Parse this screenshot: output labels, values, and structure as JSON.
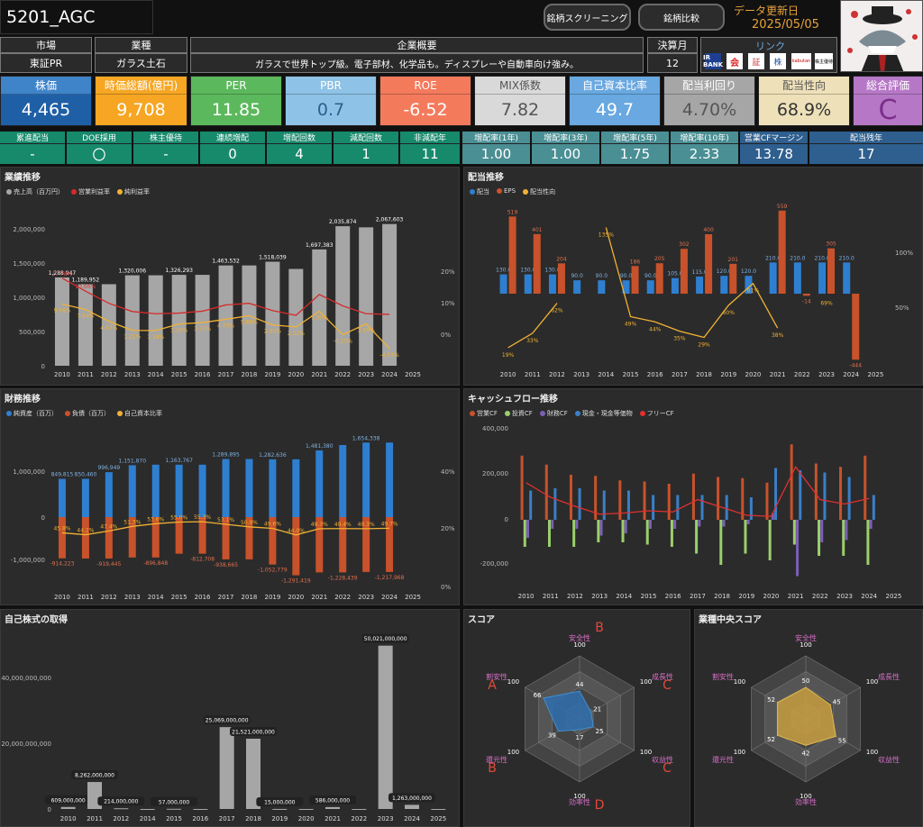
{
  "header": {
    "title": "5201_AGC",
    "btn_screening": "銘柄スクリーニング",
    "btn_compare": "銘柄比較",
    "update_label": "データ更新日",
    "update_date": "2025/05/05"
  },
  "info": {
    "market_h": "市場",
    "market_v": "東証PR",
    "industry_h": "業種",
    "industry_v": "ガラス土石",
    "overview_h": "企業概要",
    "overview_v": "ガラスで世界トップ級。電子部材、化学品も。ディスプレーや自動車向け強み。",
    "fiscal_h": "決算月",
    "fiscal_v": "12",
    "link_h": "リンク",
    "links": [
      "IR BANK",
      "会",
      "証",
      "株",
      "kabutan",
      "株主優待"
    ]
  },
  "kpis": [
    {
      "label": "株価",
      "value": "4,465",
      "bg": "#1f5fa6",
      "lbg": "#3f83c8"
    },
    {
      "label": "時価総額(億円)",
      "value": "9,708",
      "bg": "#f6a623",
      "lbg": "#f6a623"
    },
    {
      "label": "PER",
      "value": "11.85",
      "bg": "#5cb85c",
      "lbg": "#5cb85c"
    },
    {
      "label": "PBR",
      "value": "0.7",
      "bg": "#8ec2e6",
      "lbg": "#8ec2e6"
    },
    {
      "label": "ROE",
      "value": "-6.52",
      "bg": "#f47a5c",
      "lbg": "#f47a5c"
    },
    {
      "label": "MIX係数",
      "value": "7.82",
      "bg": "#d9d9d9",
      "lbg": "#d9d9d9"
    },
    {
      "label": "自己資本比率",
      "value": "49.7",
      "bg": "#69a8e0",
      "lbg": "#69a8e0"
    },
    {
      "label": "配当利回り",
      "value": "4.70%",
      "bg": "#a6a6a6",
      "lbg": "#a6a6a6"
    },
    {
      "label": "配当性向",
      "value": "68.9%",
      "bg": "#eee1b9",
      "lbg": "#eee1b9"
    },
    {
      "label": "総合評価",
      "value": "C",
      "bg": "#b678c6",
      "lbg": "#b678c6"
    }
  ],
  "stats": [
    {
      "label": "累進配当",
      "value": "-",
      "bg": "#178a6c"
    },
    {
      "label": "DOE採用",
      "value": "〇",
      "bg": "#178a6c"
    },
    {
      "label": "株主優待",
      "value": "-",
      "bg": "#178a6c"
    },
    {
      "label": "連続増配",
      "value": "0",
      "bg": "#178a6c"
    },
    {
      "label": "増配回数",
      "value": "4",
      "bg": "#178a6c"
    },
    {
      "label": "減配回数",
      "value": "1",
      "bg": "#178a6c"
    },
    {
      "label": "非減配年",
      "value": "11",
      "bg": "#178a6c"
    },
    {
      "label": "増配率(1年)",
      "value": "1.00",
      "bg": "#4a8f94"
    },
    {
      "label": "増配率(3年)",
      "value": "1.00",
      "bg": "#4a8f94"
    },
    {
      "label": "増配率(5年)",
      "value": "1.75",
      "bg": "#4a8f94"
    },
    {
      "label": "増配率(10年)",
      "value": "2.33",
      "bg": "#4a8f94"
    },
    {
      "label": "営業CFマージン",
      "value": "13.78",
      "bg": "#2e5f8e"
    },
    {
      "label": "配当残年",
      "value": "17",
      "bg": "#2e5f8e"
    }
  ],
  "panels": {
    "perf": "業績推移",
    "div": "配当推移",
    "fin": "財務推移",
    "cf": "キャッシュフロー推移",
    "buyback": "自己株式の取得",
    "score": "スコア",
    "ind_score": "業種中央スコア"
  },
  "chart_data": [
    {
      "type": "bar",
      "name": "業績推移",
      "years": [
        "2010",
        "2011",
        "2012",
        "2013",
        "2014",
        "2015",
        "2016",
        "2017",
        "2018",
        "2019",
        "2020",
        "2021",
        "2022",
        "2023",
        "2024",
        "2025"
      ],
      "series": [
        {
          "name": "売上高（百万円）",
          "color": "#a6a6a6",
          "values": [
            1288947,
            1189952,
            1189952,
            1320006,
            1320006,
            1326293,
            1326293,
            1463532,
            1463532,
            1518039,
            1412306,
            1697383,
            2035874,
            2019254,
            2067603,
            null
          ]
        },
        {
          "name": "営業利益率",
          "color": "#d62a2a",
          "values": [
            17.78,
            13.66,
            9.8,
            7.2,
            6.5,
            6.7,
            7.3,
            9.3,
            9.8,
            7.5,
            6.0,
            12.6,
            9.0,
            6.5,
            6.3,
            null
          ]
        },
        {
          "name": "純利益率",
          "color": "#f2b233",
          "values": [
            9.56,
            7.84,
            4.07,
            1.22,
            1.18,
            3.26,
            3.7,
            4.73,
            5.88,
            2.93,
            2.32,
            7.3,
            -0.15,
            3.26,
            -4.55,
            null
          ]
        }
      ],
      "bar_labels": [
        "1,288,947",
        "1,189,952",
        "",
        "1,320,006",
        "",
        "1,326,293",
        "",
        "1,463,532",
        "",
        "1,518,039",
        "",
        "1,697,383",
        "2,035,874",
        "",
        "2,067,603"
      ],
      "yticks": [
        "0",
        "500,000",
        "1,000,000",
        "1,500,000",
        "2,000,000"
      ],
      "y2ticks": [
        "0%",
        "10%",
        "20%"
      ],
      "pct_labels": [
        "9.56%",
        "7.84%",
        "4.07%",
        "1.22%",
        "1.18%",
        "3.26%",
        "3.70%",
        "4.73%",
        "5.88%",
        "2.93%",
        "2.32%",
        "7.30%",
        "-0.15%",
        "3.26%",
        "-4.55%"
      ],
      "op_labels": [
        "17.78%",
        "13.66%"
      ]
    },
    {
      "type": "bar",
      "name": "配当推移",
      "years": [
        "2010",
        "2011",
        "2012",
        "2013",
        "2014",
        "2015",
        "2016",
        "2017",
        "2018",
        "2019",
        "2020",
        "2021",
        "2022",
        "2023",
        "2024",
        "2025"
      ],
      "series": [
        {
          "name": "配当",
          "color": "#2f7fd0",
          "values": [
            130.0,
            130.0,
            130.0,
            90.0,
            90.0,
            90.0,
            90.0,
            105.0,
            115.0,
            120.0,
            120.0,
            210.0,
            210.0,
            210.0,
            210.0,
            null
          ]
        },
        {
          "name": "EPS",
          "color": "#c8522b",
          "values": [
            519,
            401,
            204,
            null,
            null,
            186,
            205,
            302,
            400,
            201,
            null,
            559,
            -14,
            305,
            -444,
            null
          ]
        },
        {
          "name": "配当性向",
          "color": "#f2b233",
          "values": [
            19,
            33,
            62,
            null,
            135,
            49,
            44,
            35,
            29,
            60,
            81,
            38,
            null,
            69,
            null,
            null
          ]
        }
      ],
      "div_labels": [
        "130.0",
        "130.0",
        "130.0",
        "90.0",
        "90.0",
        "90.0",
        "90.0",
        "105.0",
        "115.0",
        "120.0",
        "120.0",
        "210.0",
        "210.0",
        "210.0",
        "210.0"
      ],
      "eps_labels": [
        "519",
        "401",
        "204",
        "",
        "",
        "186",
        "205",
        "302",
        "400",
        "201",
        "",
        "559",
        "-14",
        "305",
        "-444"
      ],
      "payout_labels": [
        "19%",
        "33%",
        "62%",
        "",
        "135%",
        "49%",
        "44%",
        "35%",
        "29%",
        "60%",
        "81%",
        "38%",
        "",
        "69%",
        ""
      ],
      "y2ticks": [
        "50%",
        "100%"
      ]
    },
    {
      "type": "bar",
      "name": "財務推移",
      "years": [
        "2010",
        "2011",
        "2012",
        "2013",
        "2014",
        "2015",
        "2016",
        "2017",
        "2018",
        "2019",
        "2020",
        "2021",
        "2022",
        "2023",
        "2024",
        "2025"
      ],
      "series": [
        {
          "name": "純資産（百万）",
          "color": "#2f7fd0",
          "values": [
            849815,
            850460,
            996949,
            1151870,
            1163767,
            1163767,
            1163767,
            1289895,
            1289895,
            1282636,
            1282636,
            1481380,
            1600000,
            1654338,
            1654338,
            null
          ]
        },
        {
          "name": "負債（百万）",
          "color": "#c8522b",
          "values": [
            -914223,
            -919445,
            -919445,
            -896848,
            -896848,
            -812708,
            -812708,
            -938665,
            -938665,
            -1052779,
            -1291419,
            -1228439,
            -1228439,
            -1217968,
            -1217968,
            null
          ]
        },
        {
          "name": "自己資本比率",
          "color": "#f2b233",
          "values": [
            45.8,
            44.2,
            47.4,
            51.3,
            53.6,
            55.0,
            55.3,
            53.1,
            50.9,
            49.6,
            44.0,
            49.3,
            49.4,
            49.3,
            49.7,
            null
          ]
        }
      ],
      "ratio_labels": [
        "45.8%",
        "44.2%",
        "47.4%",
        "51.3%",
        "53.6%",
        "55.0%",
        "55.3%",
        "53.1%",
        "50.9%",
        "49.6%",
        "44.0%",
        "49.3%",
        "49.4%",
        "49.3%",
        "49.7%"
      ],
      "pos_labels": [
        "849,815",
        "850,460",
        "996,949",
        "1,151,870",
        "",
        "1,163,767",
        "",
        "1,289,895",
        "",
        "1,282,636",
        "",
        "1,481,380",
        "",
        "1,654,338",
        ""
      ],
      "neg_labels": [
        "-914,223",
        "",
        "-919,445",
        "",
        "-896,848",
        "",
        "-812,708",
        "-938,665",
        "",
        "-1,052,779",
        "-1,291,419",
        "",
        "-1,228,439",
        "",
        "-1,217,968"
      ],
      "yticks": [
        "-1,000,000",
        "0",
        "1,000,000"
      ],
      "y2ticks": [
        "0%",
        "20%",
        "40%"
      ]
    },
    {
      "type": "bar",
      "name": "キャッシュフロー推移",
      "years": [
        "2010",
        "2011",
        "2012",
        "2013",
        "2014",
        "2015",
        "2016",
        "2017",
        "2018",
        "2019",
        "2020",
        "2021",
        "2022",
        "2023",
        "2024",
        "2025"
      ],
      "series": [
        {
          "name": "営業CF",
          "color": "#c8522b",
          "values": [
            285000,
            245000,
            200000,
            195000,
            175000,
            170000,
            160000,
            205000,
            190000,
            185000,
            165000,
            335000,
            250000,
            235000,
            285000
          ]
        },
        {
          "name": "投資CF",
          "color": "#9bcf6b",
          "values": [
            -120000,
            -120000,
            -120000,
            -100000,
            -100000,
            -110000,
            -120000,
            -150000,
            -200000,
            -150000,
            -180000,
            -110000,
            -160000,
            -160000,
            -200000
          ]
        },
        {
          "name": "財務CF",
          "color": "#7a5fb6",
          "values": [
            -80000,
            -40000,
            -40000,
            -70000,
            -60000,
            -40000,
            -40000,
            -30000,
            -30000,
            -20000,
            30000,
            -250000,
            -100000,
            -90000,
            -40000
          ]
        },
        {
          "name": "現金・現金等価物",
          "color": "#3a7fc8",
          "values": [
            130000,
            140000,
            140000,
            130000,
            130000,
            110000,
            110000,
            110000,
            110000,
            100000,
            230000,
            220000,
            210000,
            190000,
            110000
          ]
        },
        {
          "name": "フリーCF",
          "color": "#e03030",
          "values": [
            165000,
            100000,
            60000,
            25000,
            30000,
            40000,
            35000,
            90000,
            55000,
            20000,
            15000,
            235000,
            90000,
            70000,
            95000
          ]
        }
      ],
      "yticks": [
        "-200,000",
        "0",
        "200,000",
        "400,000"
      ]
    },
    {
      "type": "bar",
      "name": "自己株式の取得",
      "categories": [
        "2010",
        "2011",
        "2012",
        "2014",
        "2015",
        "2016",
        "2017",
        "2018",
        "2019",
        "2020",
        "2021",
        "2022",
        "2023",
        "2024",
        "2025"
      ],
      "values": [
        609000000,
        8262000000,
        214000000,
        0,
        57000000,
        0,
        25069000000,
        21521000000,
        15000000,
        0,
        586000000,
        0,
        50021000000,
        1263000000,
        0
      ],
      "labels": [
        "609,000,000",
        "8,262,000,000",
        "214,000,000",
        "",
        "57,000,000",
        "",
        "25,069,000,000",
        "21,521,000,000",
        "15,000,000",
        "",
        "586,000,000",
        "",
        "50,021,000,000",
        "1,263,000,000",
        ""
      ],
      "yticks": [
        "0",
        "20,000,000,000",
        "40,000,000,000"
      ]
    }
  ],
  "radar_company": {
    "axes": [
      "安全性",
      "成長性",
      "収益性",
      "効率性",
      "還元性",
      "割安性"
    ],
    "grades": [
      "B",
      "C",
      "C",
      "D",
      "B",
      "A"
    ],
    "values": [
      44,
      21,
      25,
      17,
      39,
      66
    ],
    "max": "100"
  },
  "radar_industry": {
    "axes": [
      "安全性",
      "成長性",
      "収益性",
      "効率性",
      "還元性",
      "割安性"
    ],
    "values": [
      50,
      45,
      55,
      42,
      52,
      52
    ],
    "max": "100"
  }
}
